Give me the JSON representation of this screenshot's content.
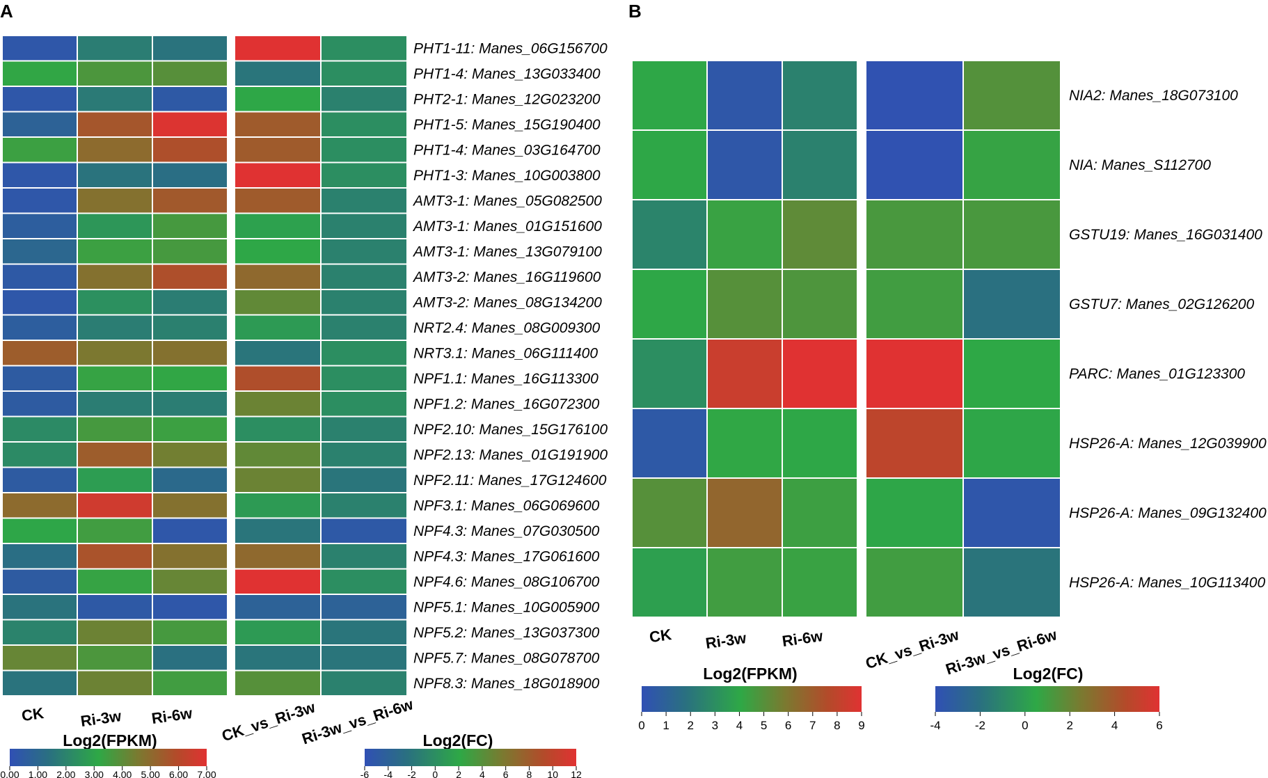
{
  "colors": {
    "scale": [
      "#3050b4",
      "#2a7080",
      "#2ea846",
      "#7a7a30",
      "#b44a2a",
      "#e03232"
    ],
    "grid": "#ffffff"
  },
  "chart_data": [
    {
      "panel": "A",
      "type": "heatmap",
      "title": "Log2(FPKM)",
      "columns": [
        "CK",
        "Ri-3w",
        "Ri-6w"
      ],
      "rows": [
        "PHT1-11: Manes_06G156700",
        "PHT1-4: Manes_13G033400",
        "PHT2-1: Manes_12G023200",
        "PHT1-5: Manes_15G190400",
        "PHT1-4: Manes_03G164700",
        "PHT1-3: Manes_10G003800",
        "AMT3-1: Manes_05G082500",
        "AMT3-1: Manes_01G151600",
        "AMT3-1: Manes_13G079100",
        "AMT3-2: Manes_16G119600",
        "AMT3-2: Manes_08G134200",
        "NRT2.4: Manes_08G009300",
        "NRT3.1: Manes_06G111400",
        "NPF1.1: Manes_16G113300",
        "NPF1.2: Manes_16G072300",
        "NPF2.10: Manes_15G176100",
        "NPF2.13: Manes_01G191900",
        "NPF2.11: Manes_17G124600",
        "NPF3.1: Manes_06G069600",
        "NPF4.3: Manes_07G030500",
        "NPF4.3: Manes_17G061600",
        "NPF4.6: Manes_08G106700",
        "NPF5.1: Manes_10G005900",
        "NPF5.2: Manes_13G037300",
        "NPF5.7: Manes_08G078700",
        "NPF8.3: Manes_18G018900"
      ],
      "values": [
        [
          0.3,
          1.8,
          1.5
        ],
        [
          3.2,
          3.7,
          3.9
        ],
        [
          0.3,
          1.7,
          0.4
        ],
        [
          0.8,
          5.6,
          6.9
        ],
        [
          3.4,
          5.0,
          5.8
        ],
        [
          0.3,
          1.5,
          1.3
        ],
        [
          0.3,
          4.8,
          5.5
        ],
        [
          0.6,
          2.6,
          3.6
        ],
        [
          1.0,
          3.4,
          3.6
        ],
        [
          0.4,
          4.8,
          5.8
        ],
        [
          0.3,
          2.4,
          1.8
        ],
        [
          0.6,
          1.8,
          1.9
        ],
        [
          5.4,
          4.6,
          4.8
        ],
        [
          0.5,
          3.3,
          3.2
        ],
        [
          0.5,
          1.8,
          1.8
        ],
        [
          2.2,
          3.6,
          3.4
        ],
        [
          2.2,
          5.4,
          4.4
        ],
        [
          0.5,
          2.8,
          1.1
        ],
        [
          5.0,
          6.6,
          4.8
        ],
        [
          3.1,
          3.5,
          0.3
        ],
        [
          1.3,
          5.7,
          4.8
        ],
        [
          0.5,
          3.3,
          4.2
        ],
        [
          1.5,
          0.4,
          0.3
        ],
        [
          2.0,
          4.3,
          3.6
        ],
        [
          4.2,
          3.7,
          1.4
        ],
        [
          1.5,
          4.3,
          3.5
        ]
      ],
      "colorbar": {
        "min": 0,
        "max": 7,
        "ticks": [
          "0.00",
          "1.00",
          "2.00",
          "3.00",
          "4.00",
          "5.00",
          "6.00",
          "7.00"
        ]
      }
    },
    {
      "panel": "A",
      "type": "heatmap",
      "title": "Log2(FC)",
      "columns": [
        "CK_vs_Ri-3w",
        "Ri-3w_vs_Ri-6w"
      ],
      "values": [
        [
          12,
          0
        ],
        [
          -2,
          0
        ],
        [
          2,
          -1
        ],
        [
          8,
          0
        ],
        [
          8,
          0
        ],
        [
          12,
          0
        ],
        [
          8,
          -1
        ],
        [
          1.5,
          -1
        ],
        [
          2,
          -1
        ],
        [
          7,
          -1
        ],
        [
          4.5,
          -1
        ],
        [
          1,
          -1
        ],
        [
          -2,
          0
        ],
        [
          9,
          0
        ],
        [
          5,
          0
        ],
        [
          0,
          -1
        ],
        [
          4.5,
          -1
        ],
        [
          5,
          -2
        ],
        [
          1,
          -1
        ],
        [
          -2,
          -5
        ],
        [
          7,
          -1
        ],
        [
          12,
          0
        ],
        [
          -4,
          -4
        ],
        [
          1,
          -2
        ],
        [
          -2,
          -2
        ],
        [
          4,
          -1
        ]
      ],
      "colorbar": {
        "min": -6,
        "max": 12,
        "ticks": [
          "-6",
          "-4",
          "-2",
          "0",
          "2",
          "4",
          "6",
          "8",
          "10",
          "12"
        ]
      }
    },
    {
      "panel": "B",
      "type": "heatmap",
      "title": "Log2(FPKM)",
      "columns": [
        "CK",
        "Ri-3w",
        "Ri-6w"
      ],
      "rows": [
        "NIA2: Manes_18G073100",
        "NIA: Manes_S112700",
        "GSTU19: Manes_16G031400",
        "GSTU7: Manes_02G126200",
        "PARC: Manes_01G123300",
        "HSP26-A: Manes_12G039900",
        "HSP26-A: Manes_09G132400",
        "HSP26-A: Manes_10G113400"
      ],
      "values": [
        [
          4.0,
          0.4,
          2.5
        ],
        [
          4.0,
          0.4,
          2.5
        ],
        [
          2.6,
          4.3,
          5.2
        ],
        [
          4.0,
          5.0,
          4.8
        ],
        [
          3.0,
          8.3,
          9.0
        ],
        [
          0.5,
          4.1,
          4.0
        ],
        [
          5.0,
          6.6,
          4.4
        ],
        [
          3.7,
          4.5,
          4.3
        ]
      ],
      "colorbar": {
        "min": 0,
        "max": 9,
        "ticks": [
          "0",
          "1",
          "2",
          "3",
          "4",
          "5",
          "6",
          "7",
          "8",
          "9"
        ]
      }
    },
    {
      "panel": "B",
      "type": "heatmap",
      "title": "Log2(FC)",
      "columns": [
        "CK_vs_Ri-3w",
        "Ri-3w_vs_Ri-6w"
      ],
      "values": [
        [
          -3.9,
          1.5
        ],
        [
          -3.9,
          0.7
        ],
        [
          1.2,
          1.2
        ],
        [
          1.0,
          -2.0
        ],
        [
          6.0,
          0.5
        ],
        [
          4.8,
          0.4
        ],
        [
          0.4,
          -3.6
        ],
        [
          1.0,
          -1.8
        ]
      ],
      "colorbar": {
        "min": -4,
        "max": 6,
        "ticks": [
          "-4",
          "-2",
          "0",
          "2",
          "4",
          "6"
        ]
      }
    }
  ]
}
